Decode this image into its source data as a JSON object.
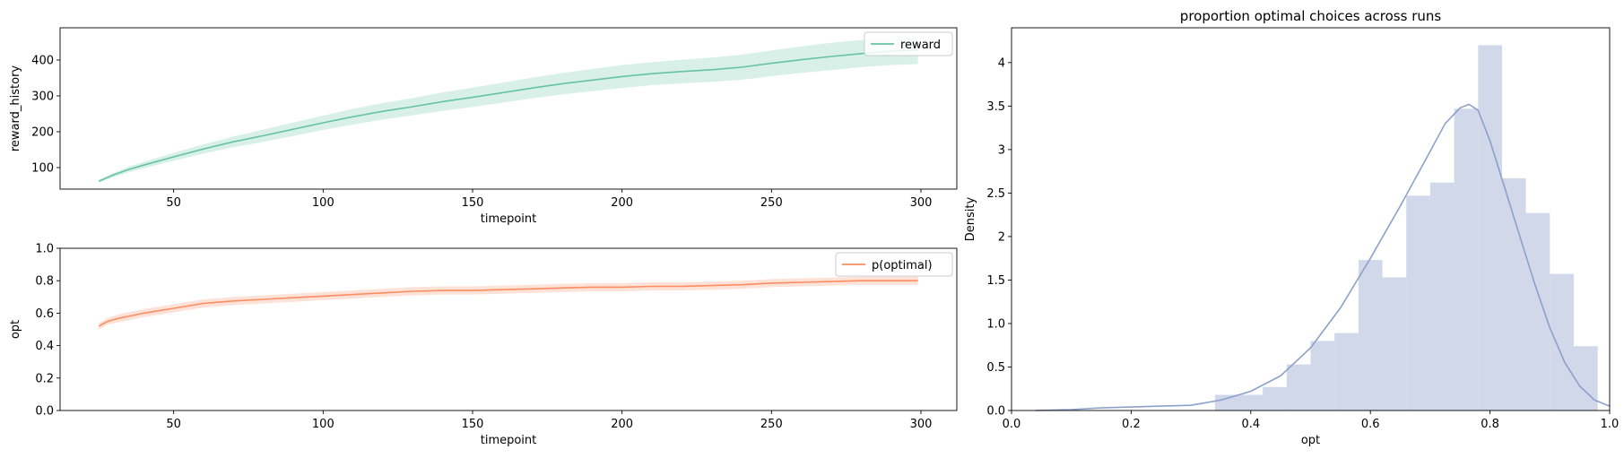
{
  "chart_data": [
    {
      "type": "line",
      "title": "",
      "xlabel": "timepoint",
      "ylabel": "reward_history",
      "xlim": [
        12,
        312
      ],
      "ylim": [
        40,
        490
      ],
      "xticks": [
        50,
        100,
        150,
        200,
        250,
        300
      ],
      "yticks": [
        100,
        200,
        300,
        400
      ],
      "grid": false,
      "legend": "top-right",
      "series": [
        {
          "name": "reward",
          "color": "#66c2a5",
          "x": [
            25,
            30,
            35,
            40,
            50,
            60,
            70,
            80,
            90,
            100,
            110,
            120,
            130,
            140,
            150,
            160,
            170,
            180,
            190,
            200,
            210,
            220,
            230,
            240,
            250,
            260,
            270,
            280,
            290,
            299
          ],
          "y": [
            62,
            80,
            95,
            107,
            130,
            152,
            172,
            189,
            207,
            225,
            242,
            257,
            270,
            284,
            296,
            309,
            322,
            334,
            344,
            354,
            362,
            368,
            373,
            380,
            391,
            401,
            410,
            418,
            425,
            428
          ],
          "lower": [
            58,
            74,
            87,
            98,
            119,
            139,
            157,
            172,
            188,
            205,
            220,
            234,
            246,
            258,
            269,
            281,
            293,
            304,
            313,
            322,
            330,
            335,
            339,
            345,
            355,
            364,
            372,
            380,
            386,
            389
          ],
          "upper": [
            67,
            86,
            103,
            116,
            141,
            165,
            187,
            206,
            226,
            245,
            264,
            280,
            294,
            310,
            323,
            337,
            351,
            364,
            375,
            386,
            394,
            401,
            407,
            415,
            427,
            438,
            448,
            456,
            464,
            467
          ]
        }
      ]
    },
    {
      "type": "line",
      "title": "",
      "xlabel": "timepoint",
      "ylabel": "opt",
      "xlim": [
        12,
        312
      ],
      "ylim": [
        0,
        1
      ],
      "xticks": [
        50,
        100,
        150,
        200,
        250,
        300
      ],
      "yticks": [
        0.0,
        0.2,
        0.4,
        0.6,
        0.8,
        1.0
      ],
      "grid": false,
      "legend": "top-right",
      "series": [
        {
          "name": "p(optimal)",
          "color": "#fc8d62",
          "x": [
            25,
            28,
            32,
            36,
            40,
            50,
            60,
            70,
            80,
            90,
            100,
            110,
            120,
            130,
            140,
            150,
            160,
            170,
            180,
            190,
            200,
            210,
            220,
            230,
            240,
            250,
            260,
            270,
            280,
            290,
            299
          ],
          "y": [
            0.52,
            0.55,
            0.57,
            0.585,
            0.6,
            0.63,
            0.66,
            0.675,
            0.685,
            0.695,
            0.705,
            0.715,
            0.725,
            0.735,
            0.74,
            0.74,
            0.745,
            0.75,
            0.755,
            0.76,
            0.76,
            0.765,
            0.765,
            0.77,
            0.775,
            0.785,
            0.79,
            0.795,
            0.8,
            0.8,
            0.8
          ],
          "lower": [
            0.5,
            0.53,
            0.545,
            0.56,
            0.575,
            0.605,
            0.635,
            0.65,
            0.66,
            0.67,
            0.68,
            0.69,
            0.7,
            0.71,
            0.715,
            0.715,
            0.72,
            0.725,
            0.73,
            0.735,
            0.735,
            0.74,
            0.74,
            0.745,
            0.75,
            0.76,
            0.765,
            0.77,
            0.775,
            0.775,
            0.775
          ],
          "upper": [
            0.54,
            0.57,
            0.595,
            0.61,
            0.625,
            0.655,
            0.685,
            0.7,
            0.71,
            0.72,
            0.73,
            0.74,
            0.75,
            0.76,
            0.765,
            0.765,
            0.77,
            0.775,
            0.78,
            0.785,
            0.785,
            0.79,
            0.79,
            0.795,
            0.8,
            0.81,
            0.815,
            0.82,
            0.825,
            0.825,
            0.825
          ]
        }
      ]
    },
    {
      "type": "bar",
      "title": "proportion optimal choices across runs",
      "xlabel": "opt",
      "ylabel": "Density",
      "xlim": [
        0,
        1
      ],
      "ylim": [
        0,
        4.4
      ],
      "xticks": [
        0.0,
        0.2,
        0.4,
        0.6,
        0.8,
        1.0
      ],
      "yticks": [
        0.0,
        0.5,
        1.0,
        1.5,
        2.0,
        2.5,
        3.0,
        3.5,
        4.0
      ],
      "grid": false,
      "hist_color": "#d0d8ea",
      "kde_color": "#8da0cb",
      "bins": [
        {
          "x0": 0.34,
          "x1": 0.38,
          "density": 0.18
        },
        {
          "x0": 0.38,
          "x1": 0.42,
          "density": 0.18
        },
        {
          "x0": 0.42,
          "x1": 0.46,
          "density": 0.27
        },
        {
          "x0": 0.46,
          "x1": 0.5,
          "density": 0.53
        },
        {
          "x0": 0.5,
          "x1": 0.54,
          "density": 0.8
        },
        {
          "x0": 0.54,
          "x1": 0.58,
          "density": 0.89
        },
        {
          "x0": 0.58,
          "x1": 0.62,
          "density": 1.73
        },
        {
          "x0": 0.62,
          "x1": 0.66,
          "density": 1.53
        },
        {
          "x0": 0.66,
          "x1": 0.7,
          "density": 2.47
        },
        {
          "x0": 0.7,
          "x1": 0.74,
          "density": 2.62
        },
        {
          "x0": 0.74,
          "x1": 0.78,
          "density": 3.47
        },
        {
          "x0": 0.78,
          "x1": 0.82,
          "density": 4.2
        },
        {
          "x0": 0.82,
          "x1": 0.86,
          "density": 2.67
        },
        {
          "x0": 0.86,
          "x1": 0.9,
          "density": 2.27
        },
        {
          "x0": 0.9,
          "x1": 0.94,
          "density": 1.57
        },
        {
          "x0": 0.94,
          "x1": 0.98,
          "density": 0.74
        }
      ],
      "kde": {
        "x": [
          0.04,
          0.1,
          0.15,
          0.2,
          0.25,
          0.3,
          0.35,
          0.4,
          0.45,
          0.5,
          0.55,
          0.6,
          0.65,
          0.7,
          0.725,
          0.75,
          0.765,
          0.78,
          0.8,
          0.825,
          0.85,
          0.875,
          0.9,
          0.925,
          0.95,
          0.975,
          1.0
        ],
        "y": [
          0.0,
          0.01,
          0.03,
          0.04,
          0.05,
          0.06,
          0.12,
          0.22,
          0.4,
          0.72,
          1.18,
          1.75,
          2.35,
          2.98,
          3.3,
          3.48,
          3.52,
          3.45,
          3.1,
          2.55,
          2.0,
          1.45,
          0.95,
          0.55,
          0.28,
          0.12,
          0.05
        ]
      }
    }
  ]
}
